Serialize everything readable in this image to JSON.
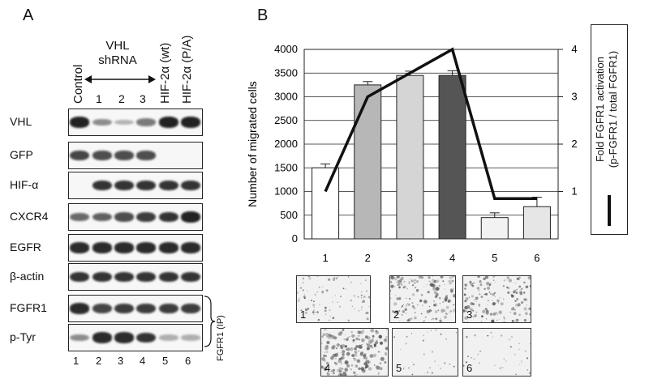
{
  "panel_a": {
    "letter": "A",
    "lane_headers": [
      "Control",
      "HIF-2α (wt)",
      "HIF-2α (P/A)"
    ],
    "vhl_group": {
      "line1": "VHL",
      "line2": "shRNA",
      "subnums": [
        "1",
        "2",
        "3"
      ]
    },
    "rows": [
      {
        "label": "VHL",
        "bands": [
          0.95,
          0.35,
          0.12,
          0.45,
          0.95,
          0.95
        ]
      },
      {
        "label": "GFP",
        "bands": [
          0.75,
          0.7,
          0.7,
          0.7,
          0,
          0
        ]
      },
      {
        "label": "HIF-α",
        "bands": [
          0,
          0.85,
          0.85,
          0.85,
          0.85,
          0.85
        ]
      },
      {
        "label": "CXCR4",
        "bands": [
          0.55,
          0.6,
          0.7,
          0.8,
          0.85,
          0.95
        ]
      },
      {
        "label": "EGFR",
        "bands": [
          0.9,
          0.9,
          0.9,
          0.9,
          0.9,
          0.9
        ]
      },
      {
        "label": "β-actin",
        "bands": [
          0.85,
          0.85,
          0.85,
          0.85,
          0.85,
          0.85
        ]
      },
      {
        "label": "FGFR1",
        "bands": [
          0.9,
          0.75,
          0.8,
          0.8,
          0.8,
          0.8
        ]
      },
      {
        "label": "p-Tyr",
        "bands": [
          0.35,
          0.9,
          0.9,
          0.85,
          0.15,
          0.15
        ]
      }
    ],
    "lane_numbers": [
      "1",
      "2",
      "3",
      "4",
      "5",
      "6"
    ],
    "ip_label": "FGFR1 (IP)"
  },
  "panel_b": {
    "letter": "B",
    "chart_data": {
      "type": "bar",
      "categories": [
        "1",
        "2",
        "3",
        "4",
        "5",
        "6"
      ],
      "values": [
        1500,
        3250,
        3450,
        3450,
        450,
        680
      ],
      "errors": [
        80,
        70,
        90,
        100,
        100,
        200
      ],
      "bar_colors": [
        "#ffffff",
        "#b7b7b7",
        "#d5d5d5",
        "#555555",
        "#f2f2f2",
        "#e6e6e6"
      ],
      "ylabel": "Number of migrated cells",
      "ylim": [
        0,
        4000
      ],
      "yticks": [
        0,
        500,
        1000,
        1500,
        2000,
        2500,
        3000,
        3500,
        4000
      ],
      "y2lim": [
        0,
        4
      ],
      "y2ticks": [
        1,
        2,
        3,
        4
      ],
      "line_values": [
        1.0,
        3.0,
        3.5,
        4.0,
        0.85,
        0.85
      ],
      "grid": true,
      "legend": {
        "line1": "Fold  FGFR1 activation",
        "line2": "(p-FGFR1 / total FGFR1)"
      }
    },
    "micrographs": [
      {
        "label": "1",
        "density": 0.25
      },
      {
        "label": "2",
        "density": 0.55
      },
      {
        "label": "3",
        "density": 0.5
      },
      {
        "label": "4",
        "density": 0.65
      },
      {
        "label": "5",
        "density": 0.05
      },
      {
        "label": "6",
        "density": 0.06
      }
    ]
  }
}
